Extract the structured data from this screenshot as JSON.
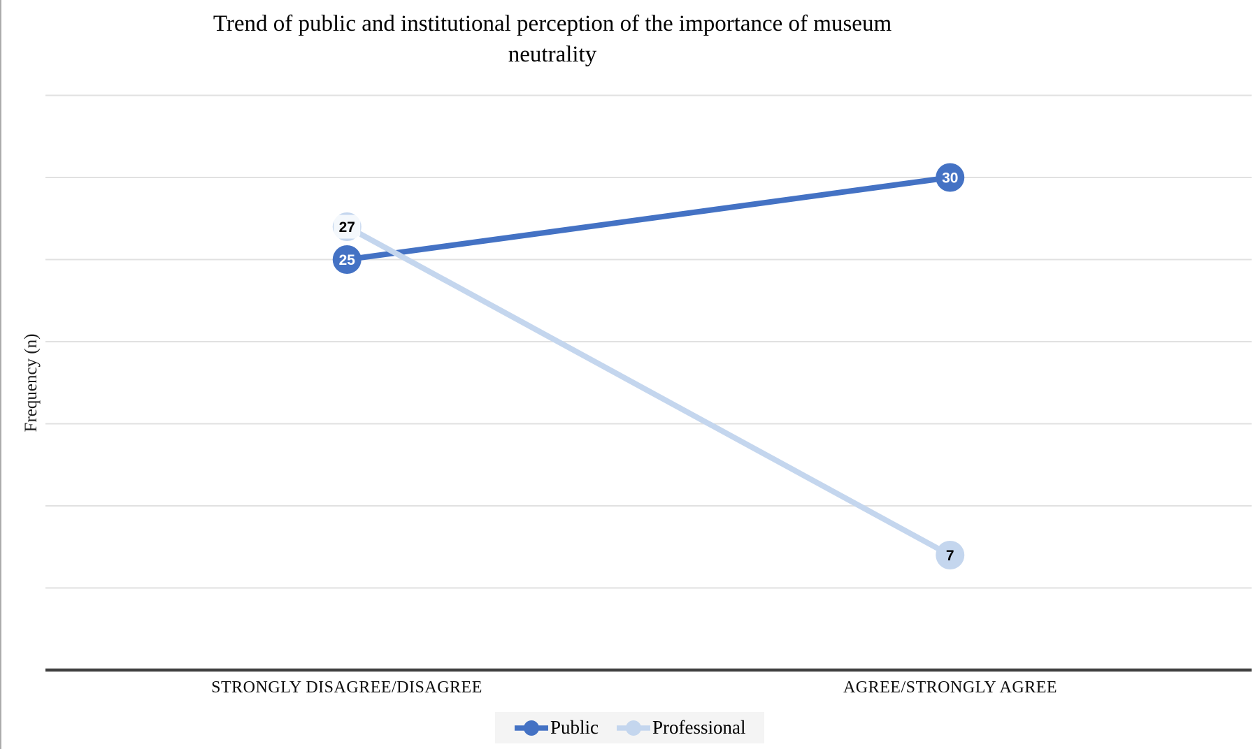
{
  "window": {
    "left_border_color": "#ababab",
    "background_color": "#ffffff"
  },
  "colors": {
    "public_series": "#4472c4",
    "professional_series": "#c4d6ee",
    "gridline": "#e1e1e1",
    "axis_line": "#404040",
    "legend_background": "#f4f4f4",
    "title_text": "#000000",
    "label_white_bg": "rgba(255,255,255,0.82)"
  },
  "chart_data": {
    "type": "line",
    "title": "Trend of public and institutional perception of the importance of museum neutrality",
    "title_lines": [
      "Trend of public and institutional perception of the importance of museum",
      "neutrality"
    ],
    "xlabel": "",
    "ylabel": "Frequency (n)",
    "categories": [
      "STRONGLY DISAGREE/DISAGREE",
      "AGREE/STRONGLY AGREE"
    ],
    "series": [
      {
        "name": "Public",
        "values": [
          25,
          30
        ],
        "data_labels": [
          "25",
          "30"
        ],
        "color": "#4472c4",
        "label_text_color": "#ffffff",
        "label_background": [
          false,
          false
        ]
      },
      {
        "name": "Professional",
        "values": [
          27,
          7
        ],
        "data_labels": [
          "27",
          "7"
        ],
        "color": "#c4d6ee",
        "label_text_color": "#000000",
        "label_background": [
          true,
          false
        ]
      }
    ],
    "ylim": [
      0,
      36
    ],
    "gridline_values": [
      5,
      10,
      15,
      20,
      25,
      30,
      35
    ],
    "y_tick_labels_visible": false,
    "grid": true,
    "legend_position": "bottom"
  }
}
